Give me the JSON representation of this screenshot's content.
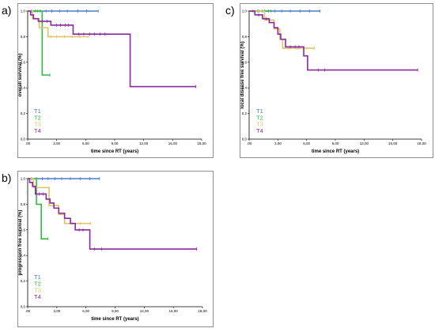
{
  "chart_data": [
    {
      "type": "line",
      "panel_label": "a)",
      "xlabel": "time since RT (years)",
      "ylabel": "overall survival (%)",
      "xlim": [
        0,
        18
      ],
      "ylim": [
        0,
        1.0
      ],
      "x_ticks": [
        ".00",
        "3,00",
        "6,00",
        "9,00",
        "12,00",
        "15,00",
        "18,00"
      ],
      "y_ticks": [
        "0,0",
        "0,2",
        "0,4",
        "0,6",
        "0,8",
        "1,0"
      ],
      "legend_position": "bottom-left",
      "grid": false,
      "series": [
        {
          "name": "T1",
          "color": "#4a7ec7",
          "steps": [
            [
              0,
              1.0
            ],
            [
              7.3,
              1.0
            ]
          ],
          "censor_x": [
            0.4,
            0.8,
            1.3,
            1.9,
            2.5,
            3.3,
            4.1,
            5.2,
            6.1,
            7.3
          ]
        },
        {
          "name": "T2",
          "color": "#33b84a",
          "steps": [
            [
              0,
              1.0
            ],
            [
              1.5,
              0.5
            ],
            [
              2.3,
              0.5
            ]
          ],
          "censor_x": [
            1.0,
            2.3
          ]
        },
        {
          "name": "T3",
          "color": "#e1c46a",
          "steps": [
            [
              0,
              1.0
            ],
            [
              0.5,
              0.94
            ],
            [
              1.2,
              0.87
            ],
            [
              2.1,
              0.8
            ],
            [
              6.3,
              0.8
            ]
          ],
          "censor_x": [
            2.4,
            3.0,
            3.8,
            4.6,
            5.4,
            6.3
          ]
        },
        {
          "name": "T4",
          "color": "#8a2a9e",
          "steps": [
            [
              0,
              1.0
            ],
            [
              0.3,
              0.97
            ],
            [
              0.6,
              0.94
            ],
            [
              1.1,
              0.92
            ],
            [
              2.4,
              0.89
            ],
            [
              4.7,
              0.82
            ],
            [
              10.6,
              0.41
            ],
            [
              17.4,
              0.41
            ]
          ],
          "censor_x": [
            1.5,
            2.0,
            3.0,
            3.4,
            3.9,
            4.2,
            5.3,
            5.8,
            6.4,
            6.9,
            7.5,
            8.0,
            17.4
          ]
        }
      ]
    },
    {
      "type": "line",
      "panel_label": "c)",
      "xlabel": "time since RT (years)",
      "ylabel": "local disease free survival (%)",
      "xlim": [
        0,
        18
      ],
      "ylim": [
        0,
        1.0
      ],
      "x_ticks": [
        ".00",
        "3,00",
        "6,00",
        "9,00",
        "12,00",
        "15,00",
        "18,00"
      ],
      "y_ticks": [
        "0,0",
        "0,2",
        "0,4",
        "0,6",
        "0,8",
        "1,0"
      ],
      "legend_position": "bottom-left",
      "grid": false,
      "series": [
        {
          "name": "T1",
          "color": "#4a7ec7",
          "steps": [
            [
              0,
              1.0
            ],
            [
              7.4,
              1.0
            ]
          ],
          "censor_x": [
            0.4,
            0.9,
            1.4,
            2.0,
            2.7,
            3.4,
            4.3,
            5.3,
            6.3,
            7.4
          ]
        },
        {
          "name": "T2",
          "color": "#33b84a",
          "steps": [
            [
              0,
              1.0
            ],
            [
              2.3,
              1.0
            ]
          ],
          "censor_x": [
            1.0,
            1.6,
            2.3
          ]
        },
        {
          "name": "T3",
          "color": "#e1c46a",
          "steps": [
            [
              0,
              1.0
            ],
            [
              1.6,
              0.93
            ],
            [
              2.6,
              0.86
            ],
            [
              3.2,
              0.78
            ],
            [
              3.5,
              0.71
            ],
            [
              6.8,
              0.71
            ]
          ],
          "censor_x": [
            4.1,
            5.0,
            6.8
          ]
        },
        {
          "name": "T4",
          "color": "#8a2a9e",
          "steps": [
            [
              0,
              1.0
            ],
            [
              0.6,
              0.97
            ],
            [
              1.4,
              0.94
            ],
            [
              2.1,
              0.91
            ],
            [
              2.6,
              0.87
            ],
            [
              3.0,
              0.82
            ],
            [
              3.3,
              0.78
            ],
            [
              3.8,
              0.72
            ],
            [
              5.7,
              0.65
            ],
            [
              6.1,
              0.54
            ],
            [
              17.6,
              0.54
            ]
          ],
          "censor_x": [
            1.0,
            1.8,
            4.3,
            4.8,
            5.2,
            7.2,
            7.9,
            17.6
          ]
        }
      ]
    },
    {
      "type": "line",
      "panel_label": "b)",
      "xlabel": "time since RT (years)",
      "ylabel": "progression free survival (%)",
      "xlim": [
        0,
        18
      ],
      "ylim": [
        0,
        1.0
      ],
      "x_ticks": [
        ".00",
        "3,00",
        "6,00",
        "9,00",
        "12,00",
        "15,00",
        "18,00"
      ],
      "y_ticks": [
        "0,0",
        "0,2",
        "0,4",
        "0,6",
        "0,8",
        "1,0"
      ],
      "legend_position": "bottom-left",
      "grid": false,
      "series": [
        {
          "name": "T1",
          "color": "#4a7ec7",
          "steps": [
            [
              0,
              1.0
            ],
            [
              7.4,
              1.0
            ]
          ],
          "censor_x": [
            0.4,
            0.9,
            1.5,
            2.1,
            2.8,
            3.5,
            4.4,
            5.4,
            6.4,
            7.4
          ]
        },
        {
          "name": "T2",
          "color": "#33b84a",
          "steps": [
            [
              0,
              1.0
            ],
            [
              0.9,
              0.8
            ],
            [
              1.4,
              0.53
            ],
            [
              2.1,
              0.53
            ]
          ],
          "censor_x": [
            2.1
          ]
        },
        {
          "name": "T3",
          "color": "#e1c46a",
          "steps": [
            [
              0,
              1.0
            ],
            [
              0.6,
              0.93
            ],
            [
              2.2,
              0.79
            ],
            [
              3.2,
              0.72
            ],
            [
              3.8,
              0.65
            ],
            [
              6.5,
              0.65
            ]
          ],
          "censor_x": [
            4.6,
            5.4,
            6.5
          ]
        },
        {
          "name": "T4",
          "color": "#8a2a9e",
          "steps": [
            [
              0,
              1.0
            ],
            [
              0.2,
              0.97
            ],
            [
              0.5,
              0.94
            ],
            [
              0.8,
              0.88
            ],
            [
              1.9,
              0.84
            ],
            [
              2.3,
              0.81
            ],
            [
              2.7,
              0.77
            ],
            [
              3.2,
              0.73
            ],
            [
              3.8,
              0.69
            ],
            [
              4.4,
              0.65
            ],
            [
              4.9,
              0.6
            ],
            [
              6.4,
              0.45
            ],
            [
              17.4,
              0.45
            ]
          ],
          "censor_x": [
            1.2,
            1.6,
            5.3,
            5.7,
            6.9,
            7.6,
            17.4
          ]
        }
      ]
    }
  ]
}
